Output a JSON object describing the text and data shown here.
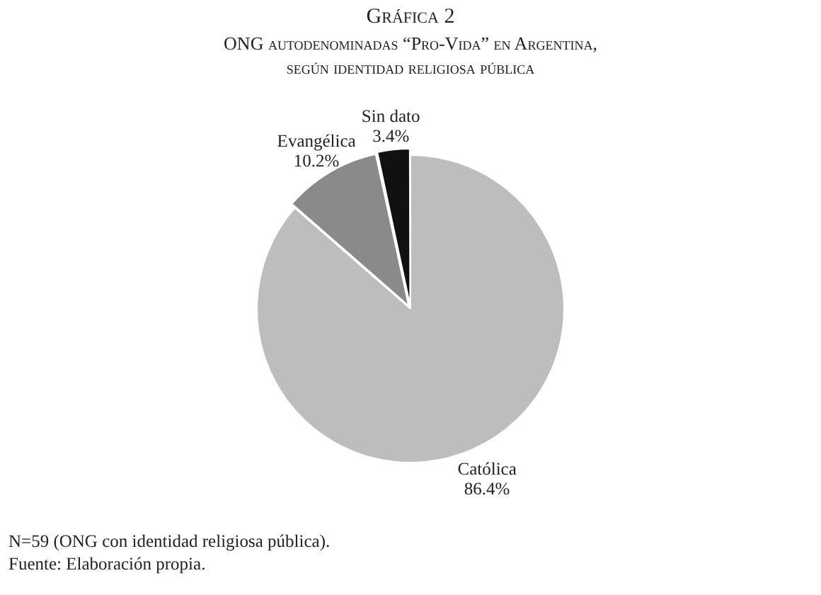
{
  "chart_data": {
    "type": "pie",
    "title": "Gráfica 2",
    "subtitle": "ONG autodenominadas “Pro-Vida” en Argentina, según identidad religiosa pública",
    "categories": [
      "Católica",
      "Evangélica",
      "Sin dato"
    ],
    "values": [
      86.4,
      10.2,
      3.4
    ],
    "colors": [
      "#bdbdbd",
      "#8a8a8a",
      "#111111"
    ],
    "value_labels": [
      "86.4%",
      "10.2%",
      "3.4%"
    ],
    "annotations": [
      "N=59 (ONG con identidad religiosa pública).",
      "Fuente: Elaboración propia."
    ],
    "legend": false
  }
}
